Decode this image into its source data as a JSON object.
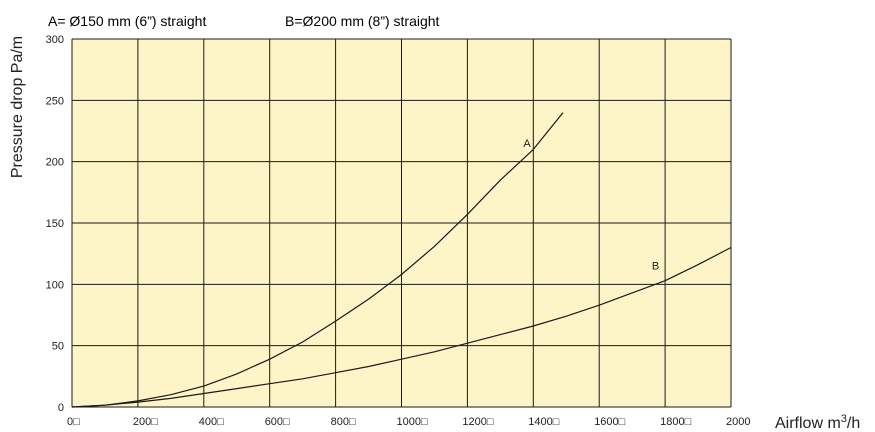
{
  "chart_data": {
    "type": "line",
    "legend": [
      "A= Ø150 mm (6”) straight",
      "B=Ø200 mm (8”) straight"
    ],
    "xlabel": "Airflow m",
    "xlabel_sup": "3",
    "xlabel_tail": "/h",
    "ylabel": "Pressure drop Pa/m",
    "xlim": [
      0,
      2000
    ],
    "ylim": [
      0,
      300
    ],
    "grid": true,
    "x_ticks": [
      0,
      200,
      400,
      600,
      800,
      1000,
      1200,
      1400,
      1600,
      1800,
      2000
    ],
    "x_tick_labels": [
      "0□",
      "200□",
      "400□",
      "600□",
      "800□",
      "1000□",
      "1200□",
      "1400□",
      "1600□",
      "1800□",
      "2000"
    ],
    "y_ticks": [
      0,
      50,
      100,
      150,
      200,
      250,
      300
    ],
    "y_tick_labels": [
      "0",
      "50",
      "100",
      "150",
      "200",
      "250",
      "300"
    ],
    "series": [
      {
        "name": "A",
        "x": [
          0,
          100,
          200,
          300,
          400,
          500,
          600,
          700,
          800,
          900,
          1000,
          1100,
          1200,
          1300,
          1400,
          1490
        ],
        "values": [
          0,
          1.5,
          5,
          10,
          17,
          27,
          39,
          53,
          70,
          88,
          108,
          131,
          157,
          185,
          210,
          240
        ]
      },
      {
        "name": "B",
        "x": [
          0,
          100,
          200,
          300,
          400,
          500,
          600,
          700,
          800,
          900,
          1000,
          1100,
          1200,
          1300,
          1400,
          1500,
          1600,
          1700,
          1800,
          1900,
          2000
        ],
        "values": [
          0,
          1.5,
          4,
          7,
          11,
          15,
          19,
          23,
          28,
          33,
          39,
          45,
          52,
          59,
          66,
          74,
          83,
          93,
          103,
          116,
          130
        ]
      }
    ],
    "annotations": [
      {
        "text": "A",
        "x": 1370,
        "y": 212
      },
      {
        "text": "B",
        "x": 1760,
        "y": 112
      }
    ],
    "colors": {
      "plot_background": "#fdf5c7",
      "grid": "#1a1a1a",
      "line": "#1a1a1a"
    }
  }
}
